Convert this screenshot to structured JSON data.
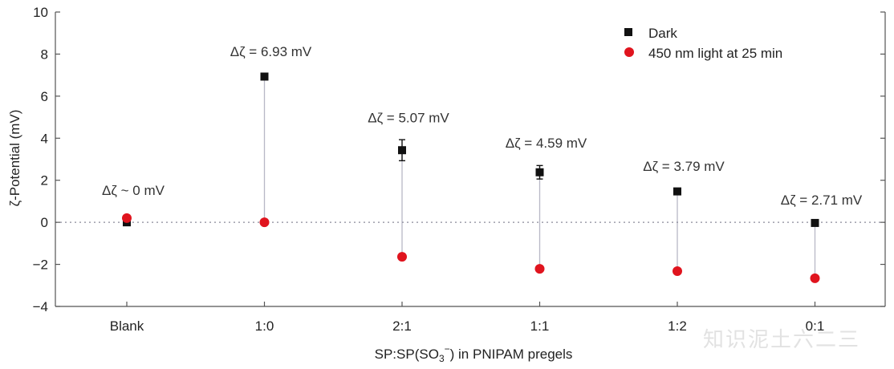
{
  "chart_data": {
    "type": "scatter",
    "categories": [
      "Blank",
      "1:0",
      "2:1",
      "1:1",
      "1:2",
      "0:1"
    ],
    "ylabel": "ζ-Potential (mV)",
    "xlabel_parts": [
      "SP:SP(SO",
      "3",
      "−",
      ") in PNIPAM pregels"
    ],
    "ylim": [
      -4,
      10
    ],
    "yticks": [
      -4,
      -2,
      0,
      2,
      4,
      6,
      8,
      10
    ],
    "ytick_labels": [
      "−4",
      "−2",
      "0",
      "2",
      "4",
      "6",
      "8",
      "10"
    ],
    "zero_line": "dotted",
    "legend_position": "top-right",
    "series": [
      {
        "name": "Dark",
        "marker": "square",
        "color": "#111111",
        "values": [
          0.0,
          6.93,
          3.43,
          2.38,
          1.47,
          -0.03
        ],
        "errors": [
          0.05,
          0.05,
          0.5,
          0.32,
          0.1,
          0.1
        ]
      },
      {
        "name": "450 nm light at 25 min",
        "marker": "circle",
        "color": "#e0141e",
        "values": [
          0.2,
          0.0,
          -1.64,
          -2.21,
          -2.32,
          -2.66
        ],
        "errors": [
          0.1,
          0.05,
          0.15,
          0.1,
          0.1,
          0.12
        ]
      }
    ],
    "annotations": [
      {
        "category": "Blank",
        "y": 1.3,
        "text": "Δζ ~ 0 mV"
      },
      {
        "category": "1:0",
        "y": 7.9,
        "text": "Δζ = 6.93 mV"
      },
      {
        "category": "2:1",
        "y": 4.75,
        "text": "Δζ = 5.07 mV"
      },
      {
        "category": "1:1",
        "y": 3.55,
        "text": "Δζ = 4.59 mV"
      },
      {
        "category": "1:2",
        "y": 2.45,
        "text": "Δζ = 3.79 mV"
      },
      {
        "category": "0:1",
        "y": 0.85,
        "text": "Δζ = 2.71 mV"
      }
    ],
    "connector_color": "#b8b8c6",
    "grid": false
  },
  "watermark": "知识泥土六二三"
}
